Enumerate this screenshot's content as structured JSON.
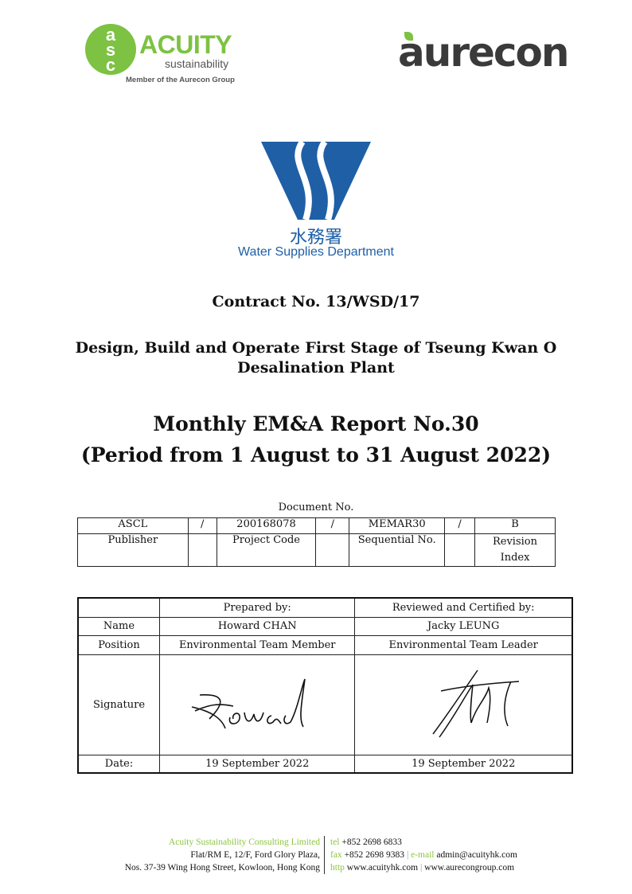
{
  "logos": {
    "acuity": {
      "name": "ACUITY",
      "sub": "sustainability",
      "tagline": "Member of the Aurecon Group",
      "letters": "asc",
      "color": "#7dc242"
    },
    "aurecon": {
      "name": "aurecon",
      "color": "#3a3a3a",
      "leaf_color": "#7dc242"
    },
    "wsd": {
      "chinese": "水務署",
      "english": "Water Supplies Department",
      "color": "#1f5fa6"
    }
  },
  "contract_no": "Contract No. 13/WSD/17",
  "project_title": [
    "Design, Build and Operate First Stage of Tseung Kwan O",
    "Desalination Plant"
  ],
  "report_title": [
    "Monthly EM&A Report No.30",
    "(Period from 1 August to 31 August 2022)"
  ],
  "document_no": {
    "label": "Document No.",
    "values": [
      "ASCL",
      "/",
      "200168078",
      "/",
      "MEMAR30",
      "/",
      "B"
    ],
    "labels": [
      "Publisher",
      "",
      "Project Code",
      "",
      "Sequential No.",
      "",
      "Revision Index"
    ]
  },
  "signoff": {
    "headers": [
      "",
      "Prepared by:",
      "Reviewed and Certified by:"
    ],
    "rows": [
      [
        "Name",
        "Howard CHAN",
        "Jacky LEUNG"
      ],
      [
        "Position",
        "Environmental Team Member",
        "Environmental Team Leader"
      ],
      [
        "Signature",
        "",
        ""
      ],
      [
        "Date:",
        "19 September 2022",
        "19 September 2022"
      ]
    ]
  },
  "footer": {
    "company": "Acuity Sustainability Consulting Limited",
    "address1": "Flat/RM E, 12/F, Ford Glory Plaza,",
    "address2": "Nos. 37-39 Wing Hong Street, Kowloon, Hong Kong",
    "tel_label": "tel",
    "tel": "+852 2698 6833",
    "fax_label": "fax",
    "fax": "+852 2698 9383",
    "email_label": "e-mail",
    "email": "admin@acuityhk.com",
    "http_label": "http",
    "web1": "www.acuityhk.com",
    "web2": "www.aurecongroup.com"
  }
}
